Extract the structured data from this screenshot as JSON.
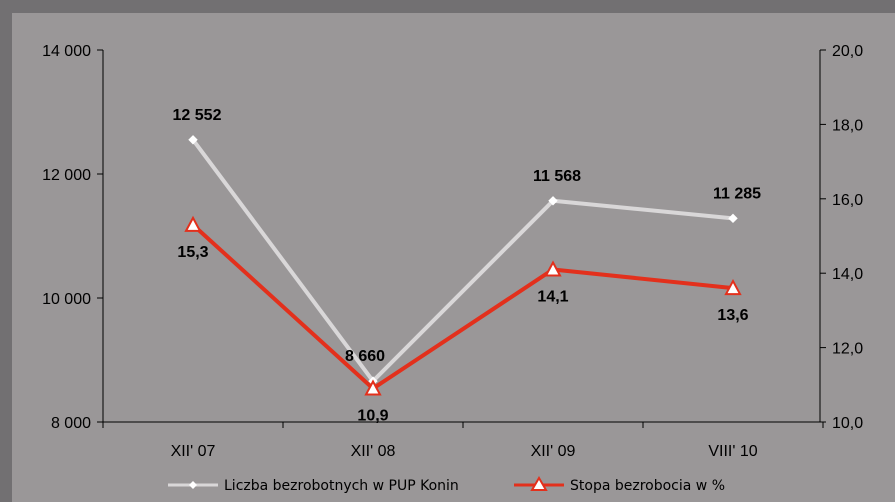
{
  "chart_data": {
    "type": "line",
    "title": "",
    "categories": [
      "XII' 07",
      "XII' 08",
      "XII' 09",
      "VIII' 10"
    ],
    "series": [
      {
        "name": "Liczba bezrobotnych w PUP Konin",
        "axis": "left",
        "values": [
          12552,
          8660,
          11568,
          11285
        ],
        "labels": [
          "12 552",
          "8 660",
          "11 568",
          "11 285"
        ],
        "color": "#d9d7d8",
        "marker": "diamond"
      },
      {
        "name": "Stopa bezrobocia w %",
        "axis": "right",
        "values": [
          15.3,
          10.9,
          14.1,
          13.6
        ],
        "labels": [
          "15,3",
          "10,9",
          "14,1",
          "13,6"
        ],
        "color": "#e3301c",
        "marker": "triangle"
      }
    ],
    "y_left": {
      "ylim": [
        8000,
        14000
      ],
      "ticks": [
        8000,
        10000,
        12000,
        14000
      ],
      "tick_labels": [
        "8 000",
        "10 000",
        "12 000",
        "14 000"
      ]
    },
    "y_right": {
      "ylim": [
        10,
        20
      ],
      "ticks": [
        10,
        12,
        14,
        16,
        18,
        20
      ],
      "tick_labels": [
        "10,0",
        "12,0",
        "14,0",
        "16,0",
        "18,0",
        "20,0"
      ]
    },
    "grid": false,
    "legend": "bottom",
    "colors": {
      "background": "#727072",
      "plot_area": "#9a9798"
    }
  }
}
